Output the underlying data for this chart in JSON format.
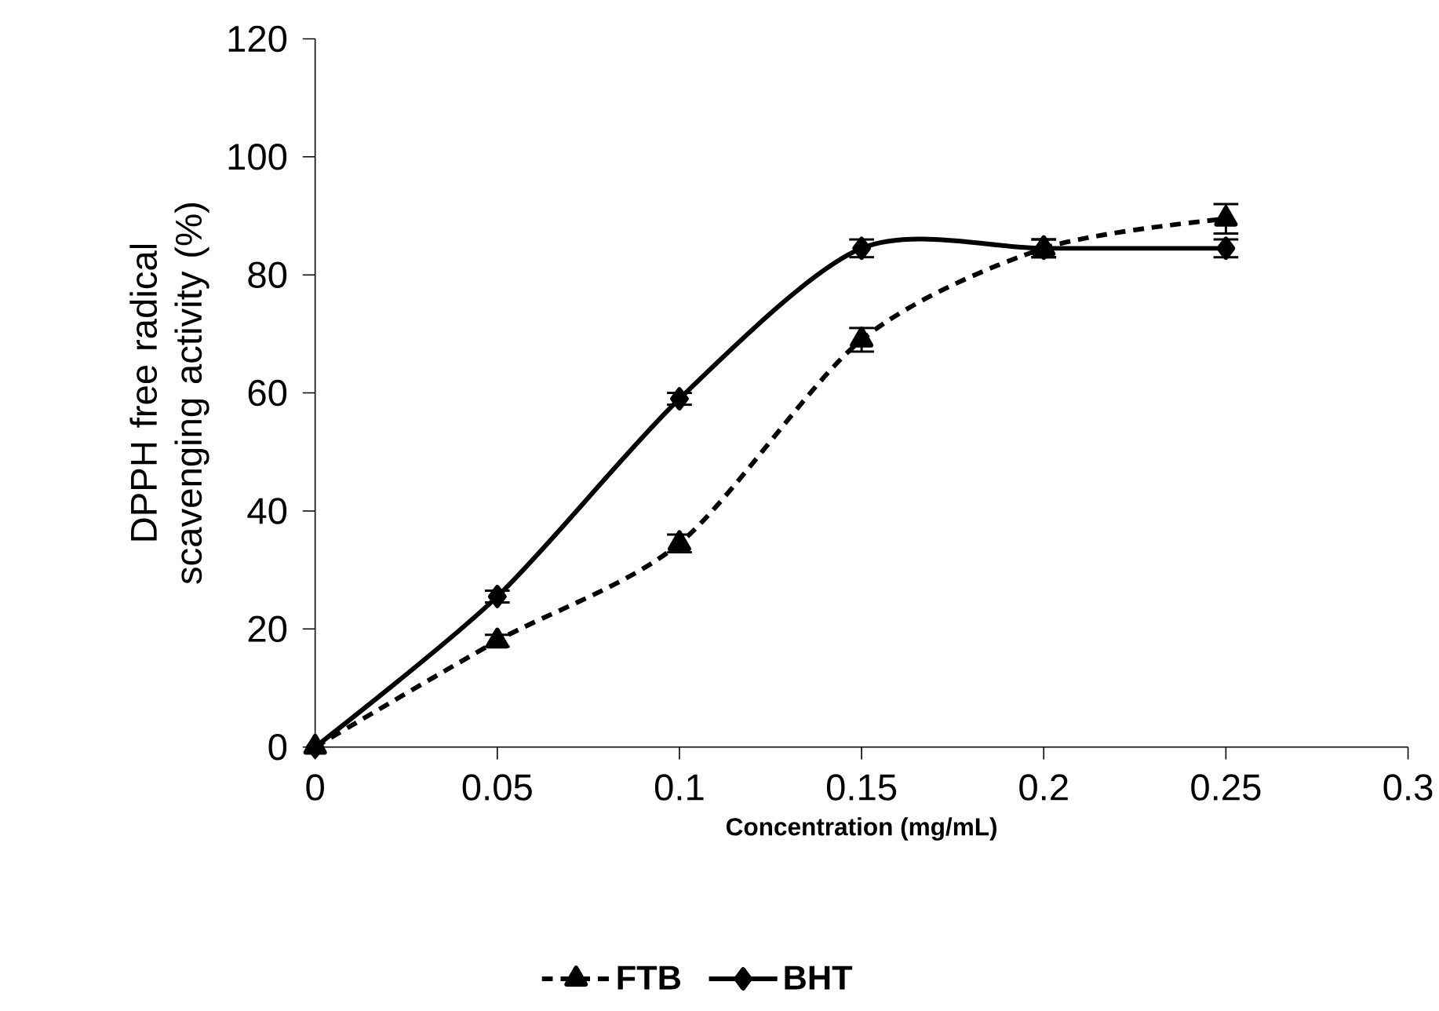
{
  "chart_data": {
    "type": "line",
    "xlabel": "Concentration (mg/mL)",
    "ylabel": "DPPH free radical scavenging activity (%)",
    "x": [
      0,
      0.05,
      0.1,
      0.15,
      0.2,
      0.25
    ],
    "series": [
      {
        "name": "FTB",
        "color": "#000000",
        "marker": "triangle",
        "line_style": "dashed",
        "values": [
          0,
          18,
          34.5,
          69,
          84.5,
          89.5
        ],
        "errors": [
          null,
          1,
          1.5,
          2,
          1.5,
          2.5
        ]
      },
      {
        "name": "BHT",
        "color": "#000000",
        "marker": "diamond",
        "line_style": "solid",
        "values": [
          0,
          25.5,
          59,
          84.5,
          84.5,
          84.5
        ],
        "errors": [
          null,
          1,
          1,
          1.5,
          1.5,
          1.5
        ]
      }
    ],
    "xlim": [
      0,
      0.3
    ],
    "ylim": [
      0,
      120
    ],
    "xticks": [
      0,
      0.05,
      0.1,
      0.15,
      0.2,
      0.25,
      0.3
    ],
    "yticks": [
      0,
      20,
      40,
      60,
      80,
      100,
      120
    ],
    "grid": false,
    "legend": "bottom"
  }
}
